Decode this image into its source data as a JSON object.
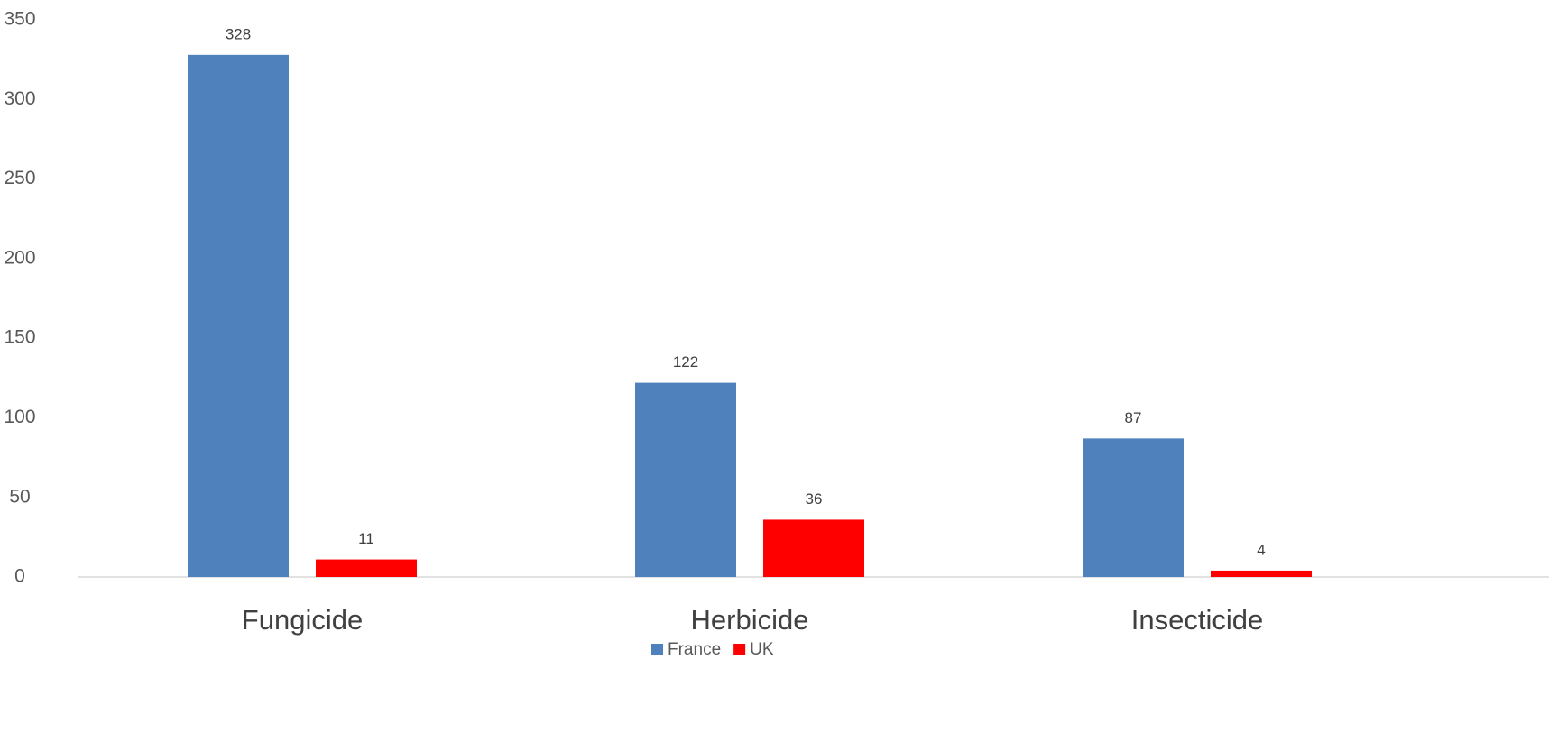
{
  "chart_data": {
    "type": "bar",
    "categories": [
      "Fungicide",
      "Herbicide",
      "Insecticide"
    ],
    "series": [
      {
        "name": "France",
        "color": "#4f81bd",
        "values": [
          328,
          122,
          87
        ]
      },
      {
        "name": "UK",
        "color": "#ff0000",
        "values": [
          11,
          36,
          4
        ]
      }
    ],
    "ylim": [
      0,
      350
    ],
    "yticks": [
      0,
      50,
      100,
      150,
      200,
      250,
      300,
      350
    ],
    "grid": false,
    "legend": "bottom"
  }
}
